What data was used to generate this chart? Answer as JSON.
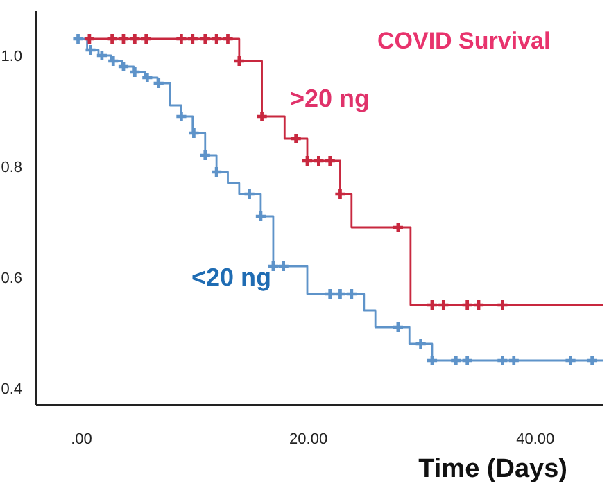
{
  "chart_data": {
    "type": "step",
    "title": "COVID Survival",
    "xlabel": "Time (Days)",
    "xlim": [
      -4,
      46
    ],
    "xticks": [
      {
        "value": 0,
        "label": ".00"
      },
      {
        "value": 20,
        "label": "20.00"
      },
      {
        "value": 40,
        "label": "40.00"
      }
    ],
    "ylim": [
      0.37,
      1.08
    ],
    "yticks": [
      0.4,
      0.6,
      0.8,
      {
        "value": 1,
        "label": "1.0"
      }
    ],
    "grid": false,
    "series": [
      {
        "name": ">20 ng",
        "color": "#c8283f",
        "x": [
          0.5,
          13.9,
          15.9,
          17.9,
          19.9,
          22.8,
          23.8,
          29.0,
          46
        ],
        "values": [
          1.03,
          0.99,
          0.89,
          0.85,
          0.81,
          0.75,
          0.69,
          0.55,
          0.55
        ]
      },
      {
        "name": "<20 ng",
        "color": "#5e93c9",
        "x": [
          -0.3,
          0.5,
          1.5,
          2.6,
          3.6,
          4.6,
          5.6,
          6.7,
          7.8,
          8.8,
          9.8,
          10.9,
          11.9,
          12.9,
          13.9,
          15.8,
          16.9,
          19.9,
          24.9,
          25.9,
          28.9,
          30.9,
          46
        ],
        "values": [
          1.03,
          1.01,
          1.0,
          0.99,
          0.98,
          0.97,
          0.96,
          0.95,
          0.91,
          0.89,
          0.86,
          0.82,
          0.79,
          0.77,
          0.75,
          0.71,
          0.62,
          0.57,
          0.54,
          0.51,
          0.48,
          0.45,
          0.45
        ]
      },
      {
        "type": "scatter",
        "marker": "cross",
        "color": "#c8283f",
        "x": [
          0.7,
          2.7,
          3.7,
          4.7,
          5.7,
          8.8,
          9.8,
          10.9,
          11.9,
          12.9,
          13.9,
          15.9,
          18.9,
          19.9,
          20.9,
          21.9,
          22.8,
          27.9,
          30.9,
          31.9,
          34.0,
          35.0,
          37.1
        ],
        "values": [
          1.03,
          1.03,
          1.03,
          1.03,
          1.03,
          1.03,
          1.03,
          1.03,
          1.03,
          1.03,
          0.99,
          0.89,
          0.85,
          0.81,
          0.81,
          0.81,
          0.75,
          0.69,
          0.55,
          0.55,
          0.55,
          0.55,
          0.55
        ]
      },
      {
        "type": "scatter",
        "marker": "cross",
        "color": "#5e93c9",
        "x": [
          -0.3,
          0.8,
          1.8,
          2.8,
          3.7,
          4.7,
          5.8,
          6.8,
          8.8,
          9.9,
          10.9,
          11.9,
          14.8,
          15.8,
          16.9,
          17.8,
          21.9,
          22.8,
          23.8,
          27.9,
          29.9,
          30.9,
          33.0,
          34.0,
          37.1,
          38.1,
          43.1,
          45.0
        ],
        "values": [
          1.03,
          1.01,
          1.0,
          0.99,
          0.98,
          0.97,
          0.96,
          0.95,
          0.89,
          0.86,
          0.82,
          0.79,
          0.75,
          0.71,
          0.62,
          0.62,
          0.57,
          0.57,
          0.57,
          0.51,
          0.48,
          0.45,
          0.45,
          0.45,
          0.45,
          0.45,
          0.45,
          0.45
        ]
      }
    ]
  }
}
